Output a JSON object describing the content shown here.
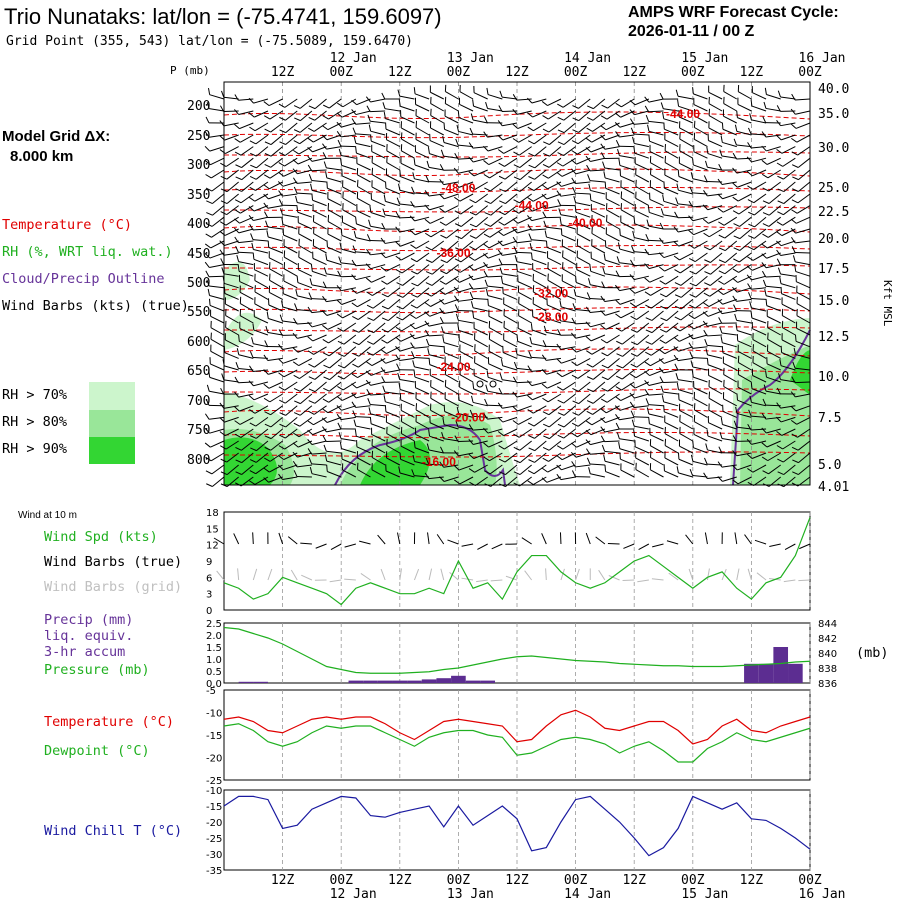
{
  "header": {
    "title": "Trio Nunataks:  lat/lon = (-75.4741, 159.6097)",
    "grid_point": "Grid Point (355, 543) lat/lon = (-75.5089, 159.6470)",
    "forecast_label": "AMPS WRF Forecast Cycle:",
    "forecast_cycle": "2026-01-11 / 00  Z",
    "model_grid_label": "Model Grid ΔX:",
    "model_grid_value": "8.000 km"
  },
  "time_axis": {
    "ticks": [
      {
        "h": 12,
        "label": "12Z"
      },
      {
        "h": 24,
        "label": "00Z"
      },
      {
        "h": 36,
        "label": "12Z"
      },
      {
        "h": 48,
        "label": "00Z"
      },
      {
        "h": 60,
        "label": "12Z"
      },
      {
        "h": 72,
        "label": "00Z"
      },
      {
        "h": 84,
        "label": "12Z"
      },
      {
        "h": 96,
        "label": "00Z"
      },
      {
        "h": 108,
        "label": "12Z"
      },
      {
        "h": 120,
        "label": "00Z"
      }
    ],
    "dates": [
      {
        "h": 24,
        "label": "12 Jan"
      },
      {
        "h": 48,
        "label": "13 Jan"
      },
      {
        "h": 72,
        "label": "14 Jan"
      },
      {
        "h": 96,
        "label": "15 Jan"
      },
      {
        "h": 120,
        "label": "16 Jan"
      }
    ]
  },
  "profile": {
    "p_label": "P (mb)",
    "p_ticks": [
      "200",
      "250",
      "300",
      "350",
      "400",
      "450",
      "500",
      "550",
      "600",
      "650",
      "700",
      "750",
      "800"
    ],
    "kft_ticks": [
      "40.0",
      "35.0",
      "30.0",
      "25.0",
      "22.5",
      "20.0",
      "17.5",
      "15.0",
      "12.5",
      "10.0",
      "7.5",
      "5.0",
      "4.01"
    ],
    "kft_label": "Kft MSL",
    "legend": {
      "temperature": "Temperature (°C)",
      "rh": "RH (%, WRT liq. wat.)",
      "cloud": "Cloud/Precip Outline",
      "barbs": "Wind Barbs (kts) (true)",
      "rh70": "RH > 70%",
      "rh80": "RH > 80%",
      "rh90": "RH > 90%"
    },
    "isotherm_labels": [
      {
        "value": "-44.00",
        "h": 94,
        "p": 215
      },
      {
        "value": "-48.00",
        "h": 48,
        "p": 340
      },
      {
        "value": "-44.00",
        "h": 63,
        "p": 370
      },
      {
        "value": "-40.00",
        "h": 74,
        "p": 400
      },
      {
        "value": "-36.00",
        "h": 47,
        "p": 450
      },
      {
        "value": "-32.00",
        "h": 67,
        "p": 520
      },
      {
        "value": "-28.00",
        "h": 67,
        "p": 560
      },
      {
        "value": "-24.00",
        "h": 47,
        "p": 645
      },
      {
        "value": "-20.00",
        "h": 50,
        "p": 730
      },
      {
        "value": "-16.00",
        "h": 44,
        "p": 805
      }
    ],
    "colors": {
      "rh70": "#ccf5cc",
      "rh80": "#99e699",
      "rh90": "#33d633",
      "temp": "#e00000",
      "cloud": "#663399"
    }
  },
  "wind_panel": {
    "title": "Wind at 10 m",
    "legend_speed": "Wind Spd (kts)",
    "legend_barbs_true": "Wind Barbs (true)",
    "legend_barbs_grid": "Wind Barbs (grid)",
    "y_ticks": [
      "0",
      "3",
      "6",
      "9",
      "12",
      "15",
      "18"
    ]
  },
  "precip_panel": {
    "legend_precip": "Precip (mm)",
    "legend_liq": "liq. equiv.",
    "legend_accum": "3-hr accum",
    "legend_pressure": "Pressure (mb)",
    "y_ticks": [
      "0.0",
      "0.5",
      "1.0",
      "1.5",
      "2.0",
      "2.5"
    ],
    "p_ticks": [
      "836",
      "838",
      "840",
      "842",
      "844"
    ],
    "p_unit": "(mb)"
  },
  "temp_panel": {
    "legend_temp": "Temperature (°C)",
    "legend_dew": "Dewpoint (°C)",
    "y_ticks": [
      "-25",
      "-20",
      "-15",
      "-10",
      "-5"
    ]
  },
  "chill_panel": {
    "legend": "Wind Chill T (°C)",
    "y_ticks": [
      "-35",
      "-30",
      "-25",
      "-20",
      "-15",
      "-10"
    ]
  },
  "chart_data": [
    {
      "type": "line",
      "name": "wind_speed_10m",
      "x_hours": [
        0,
        3,
        6,
        9,
        12,
        15,
        18,
        21,
        24,
        27,
        30,
        33,
        36,
        39,
        42,
        45,
        48,
        51,
        54,
        57,
        60,
        63,
        66,
        69,
        72,
        75,
        78,
        81,
        84,
        87,
        90,
        93,
        96,
        99,
        102,
        105,
        108,
        111,
        114,
        117,
        120
      ],
      "values": [
        5,
        4,
        2,
        3,
        6,
        5,
        4,
        3,
        1,
        4,
        5,
        4,
        3,
        3,
        4,
        3,
        9,
        4,
        5,
        2,
        7,
        10,
        10,
        7,
        5,
        4,
        5,
        7,
        9,
        10,
        8,
        6,
        4,
        6,
        7,
        4,
        2,
        5,
        6,
        10,
        17
      ],
      "ylim": [
        0,
        18
      ]
    },
    {
      "type": "line",
      "name": "pressure",
      "x_hours": [
        0,
        3,
        6,
        9,
        12,
        15,
        18,
        21,
        24,
        27,
        30,
        33,
        36,
        39,
        42,
        45,
        48,
        51,
        54,
        57,
        60,
        63,
        66,
        69,
        72,
        75,
        78,
        81,
        84,
        87,
        90,
        93,
        96,
        99,
        102,
        105,
        108,
        111,
        114,
        117,
        120
      ],
      "values": [
        843.4,
        843.2,
        842.6,
        842.0,
        841.2,
        840.2,
        839.2,
        838.2,
        837.8,
        837.4,
        837.3,
        837.3,
        837.3,
        837.4,
        837.5,
        837.8,
        838.0,
        838.4,
        838.8,
        839.2,
        839.5,
        839.6,
        839.4,
        839.2,
        839.0,
        838.9,
        838.8,
        838.6,
        838.5,
        838.4,
        838.3,
        838.3,
        838.2,
        838.2,
        838.2,
        838.3,
        838.4,
        838.5,
        838.6,
        838.8,
        838.9
      ],
      "ylim": [
        836,
        844
      ]
    },
    {
      "type": "bar",
      "name": "precip_3hr",
      "x_hours": [
        4.5,
        7.5,
        27,
        30,
        33,
        36,
        39,
        42,
        45,
        48,
        51,
        54,
        108,
        111,
        114,
        117
      ],
      "values": [
        0.05,
        0.05,
        0.1,
        0.1,
        0.1,
        0.1,
        0.1,
        0.15,
        0.2,
        0.3,
        0.1,
        0.1,
        0.8,
        0.8,
        1.5,
        0.8
      ],
      "ylim": [
        0,
        2.5
      ]
    },
    {
      "type": "line",
      "name": "temperature_2m",
      "x_hours": [
        0,
        3,
        6,
        9,
        12,
        15,
        18,
        21,
        24,
        27,
        30,
        33,
        36,
        39,
        42,
        45,
        48,
        51,
        54,
        57,
        60,
        63,
        66,
        69,
        72,
        75,
        78,
        81,
        84,
        87,
        90,
        93,
        96,
        99,
        102,
        105,
        108,
        111,
        114,
        117,
        120
      ],
      "values": [
        -11.5,
        -11,
        -12,
        -14,
        -14.5,
        -13,
        -11.5,
        -11,
        -11.5,
        -11,
        -11,
        -12.5,
        -14.5,
        -16,
        -14,
        -12,
        -11.5,
        -12,
        -12.5,
        -13,
        -16.5,
        -16,
        -13,
        -10.5,
        -9.5,
        -11,
        -13.5,
        -14,
        -13,
        -12,
        -12,
        -14,
        -17,
        -16,
        -13,
        -11.5,
        -14,
        -14.5,
        -13,
        -12,
        -11
      ],
      "ylim": [
        -25,
        -5
      ]
    },
    {
      "type": "line",
      "name": "dewpoint_2m",
      "x_hours": [
        0,
        3,
        6,
        9,
        12,
        15,
        18,
        21,
        24,
        27,
        30,
        33,
        36,
        39,
        42,
        45,
        48,
        51,
        54,
        57,
        60,
        63,
        66,
        69,
        72,
        75,
        78,
        81,
        84,
        87,
        90,
        93,
        96,
        99,
        102,
        105,
        108,
        111,
        114,
        117,
        120
      ],
      "values": [
        -13,
        -12.5,
        -14,
        -16.5,
        -17.5,
        -16.5,
        -14.5,
        -13,
        -13.5,
        -13,
        -13,
        -14.5,
        -16,
        -17.5,
        -15.5,
        -14.5,
        -14,
        -14,
        -15,
        -15.5,
        -19.5,
        -19,
        -17.5,
        -16,
        -15.5,
        -16,
        -17,
        -19,
        -17.5,
        -16.5,
        -18.5,
        -21,
        -21,
        -18,
        -16.5,
        -14.5,
        -16,
        -16.5,
        -15.5,
        -14.5,
        -13.5
      ],
      "ylim": [
        -25,
        -5
      ]
    },
    {
      "type": "line",
      "name": "wind_chill",
      "x_hours": [
        0,
        3,
        6,
        9,
        12,
        15,
        18,
        21,
        24,
        27,
        30,
        33,
        36,
        39,
        42,
        45,
        48,
        51,
        54,
        57,
        60,
        63,
        66,
        69,
        72,
        75,
        78,
        81,
        84,
        87,
        90,
        93,
        96,
        99,
        102,
        105,
        108,
        111,
        114,
        117,
        120
      ],
      "values": [
        -15,
        -12,
        -12,
        -13,
        -22,
        -21,
        -16,
        -14,
        -12,
        -12.5,
        -18,
        -18.5,
        -17,
        -16,
        -15,
        -21.5,
        -15,
        -21,
        -18,
        -15,
        -19,
        -29,
        -28,
        -20,
        -13,
        -12,
        -16,
        -20,
        -25,
        -30.5,
        -28,
        -22,
        -12,
        -14,
        -16,
        -14,
        -19,
        -19.5,
        -22,
        -25,
        -28.5
      ],
      "ylim": [
        -35,
        -10
      ]
    }
  ]
}
